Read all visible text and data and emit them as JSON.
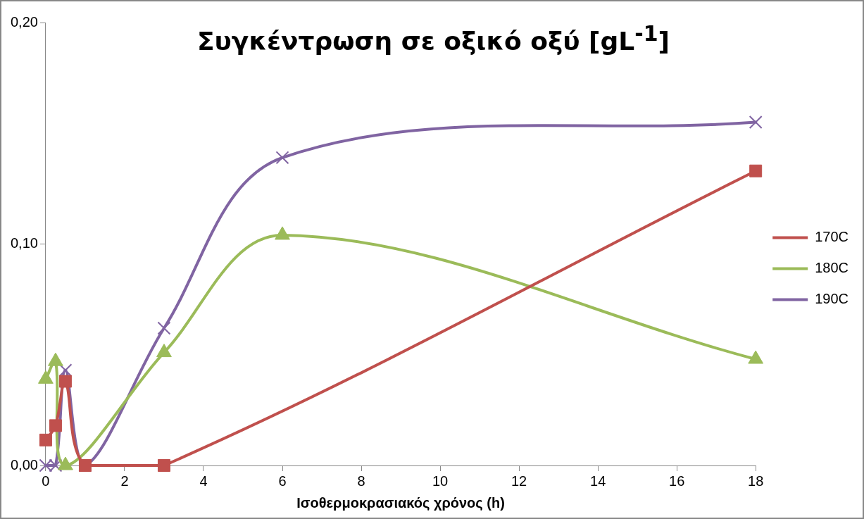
{
  "chart_data": {
    "type": "line",
    "title": "Συγκέντρωση σε οξικό οξύ [gL$^{-1}$]",
    "xlabel": "Ισοθερμοκρασιακός χρόνος (h)",
    "xlim": [
      0,
      18
    ],
    "xticks": [
      0,
      2,
      4,
      6,
      8,
      10,
      12,
      14,
      16,
      18
    ],
    "ylim": [
      0,
      0.2
    ],
    "yticks": [
      {
        "value": 0,
        "label": "0,00"
      },
      {
        "value": 0.1,
        "label": "0,10"
      },
      {
        "value": 0.2,
        "label": "0,20"
      }
    ],
    "grid": false,
    "legend": "right",
    "line_style": "solid",
    "series": [
      {
        "name": "170C",
        "color": "#c0504d",
        "marker": "square",
        "x": [
          0,
          0.25,
          0.5,
          1,
          3,
          18
        ],
        "values": [
          0.0115,
          0.018,
          0.038,
          0,
          0,
          0.133
        ]
      },
      {
        "name": "180C",
        "color": "#9bbb59",
        "marker": "triangle",
        "x": [
          0,
          0.25,
          0.5,
          3,
          6,
          18
        ],
        "values": [
          0.039,
          0.047,
          0,
          0.051,
          0.104,
          0.048
        ]
      },
      {
        "name": "190C",
        "color": "#8064a2",
        "marker": "cross",
        "x": [
          0,
          0.25,
          0.5,
          1,
          3,
          6,
          18
        ],
        "values": [
          0,
          0,
          0.043,
          0,
          0.062,
          0.139,
          0.155
        ]
      }
    ]
  }
}
